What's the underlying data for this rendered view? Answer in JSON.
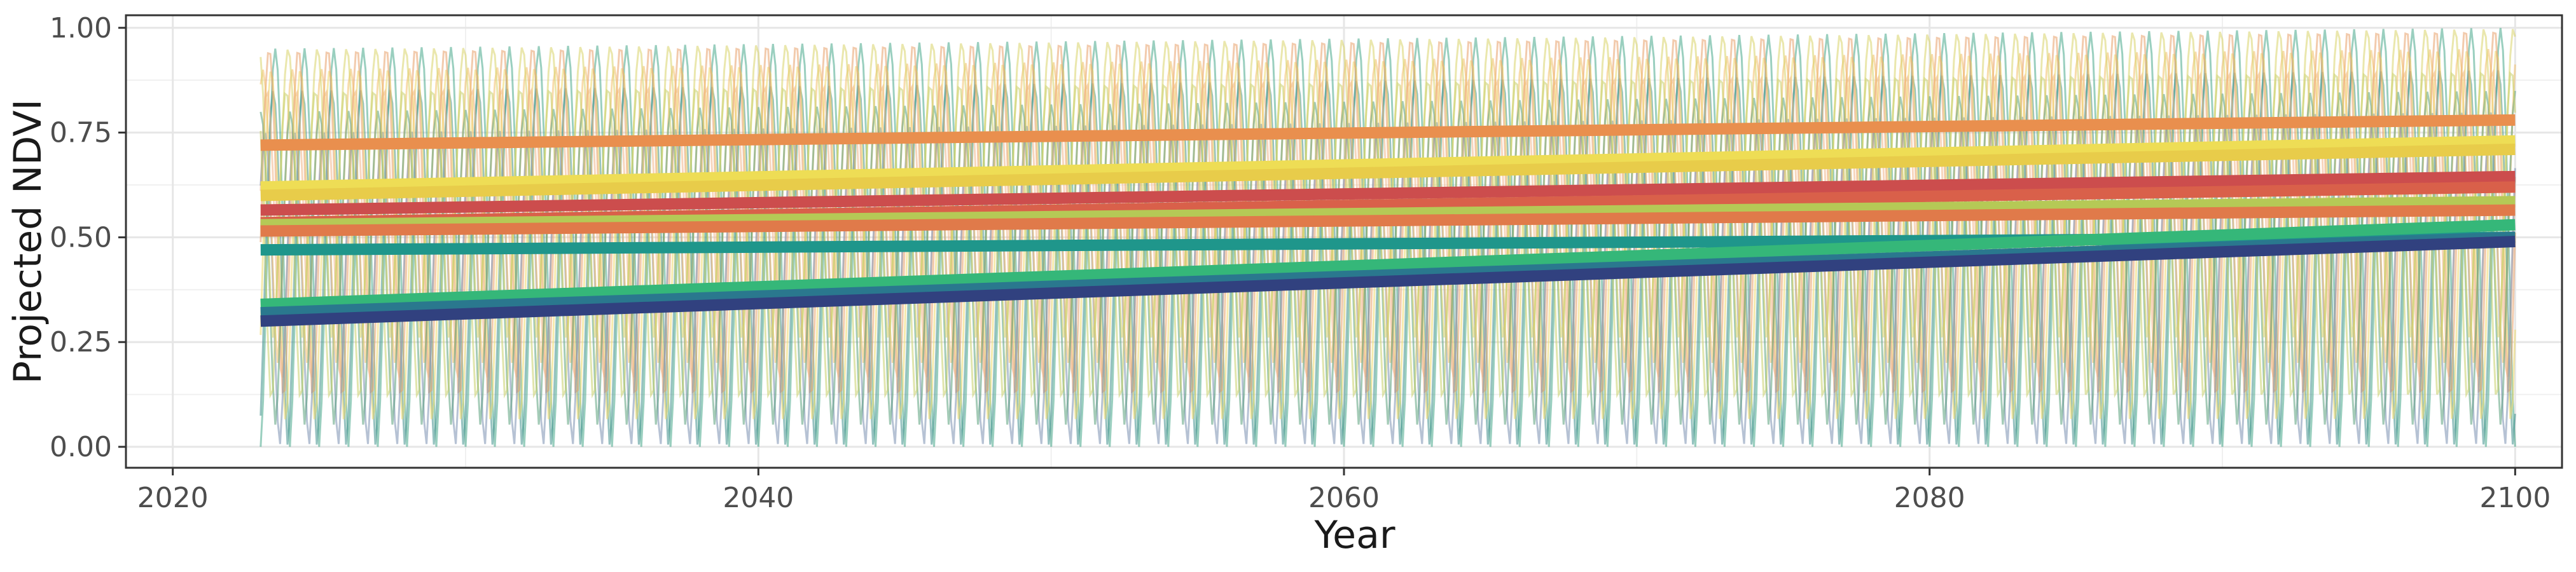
{
  "chart_data": {
    "type": "line",
    "xlabel": "Year",
    "ylabel": "Projected NDVI",
    "xlim": [
      2018.4,
      2101.6
    ],
    "ylim": [
      -0.05,
      1.03
    ],
    "x_ticks": [
      2020,
      2040,
      2060,
      2080,
      2100
    ],
    "x_tick_labels": [
      "2020",
      "2040",
      "2060",
      "2080",
      "2100"
    ],
    "y_ticks": [
      0,
      0.25,
      0.5,
      0.75,
      1
    ],
    "y_tick_labels": [
      "0.00",
      "0.25",
      "0.50",
      "0.75",
      "1.00"
    ],
    "grid": true,
    "legend": "none",
    "seasonal_series": {
      "description_note": "annual NDVI oscillation, one cycle per year",
      "x_range": [
        2023,
        2100
      ],
      "cycles_per_year": 1,
      "colors": [
        "#3f8f8c",
        "#47a88a",
        "#5aa07c",
        "#7a8fb0",
        "#f2c06a",
        "#e8a06a",
        "#eed86a",
        "#d9d36a",
        "#f0b488",
        "#c8d06a"
      ],
      "series": [
        {
          "min": 0.0,
          "max": 0.95,
          "color": "#47a88a"
        },
        {
          "min": 0.0,
          "max": 0.85,
          "color": "#3f8f8c"
        },
        {
          "min": 0.05,
          "max": 0.9,
          "color": "#eed86a"
        },
        {
          "min": 0.1,
          "max": 0.95,
          "color": "#e8a06a"
        },
        {
          "min": 0.15,
          "max": 0.85,
          "color": "#f0b488"
        },
        {
          "min": 0.0,
          "max": 0.75,
          "color": "#7a8fb0"
        },
        {
          "min": 0.2,
          "max": 0.9,
          "color": "#f2c06a"
        },
        {
          "min": 0.05,
          "max": 0.8,
          "color": "#5aa07c"
        },
        {
          "min": 0.25,
          "max": 0.95,
          "color": "#d9d36a"
        },
        {
          "min": 0.1,
          "max": 0.85,
          "color": "#c8d06a"
        }
      ]
    },
    "trend_series": [
      {
        "x": [
          2023,
          2100
        ],
        "y": [
          0.72,
          0.78
        ],
        "color": "#e98f4e"
      },
      {
        "x": [
          2023,
          2100
        ],
        "y": [
          0.62,
          0.73
        ],
        "color": "#eedd55"
      },
      {
        "x": [
          2023,
          2100
        ],
        "y": [
          0.6,
          0.71
        ],
        "color": "#e8cc4a"
      },
      {
        "x": [
          2023,
          2100
        ],
        "y": [
          0.565,
          0.645
        ],
        "color": "#cc4d4d"
      },
      {
        "x": [
          2023,
          2100
        ],
        "y": [
          0.535,
          0.62
        ],
        "color": "#d9604a"
      },
      {
        "x": [
          2023,
          2100
        ],
        "y": [
          0.53,
          0.585
        ],
        "color": "#b5c956"
      },
      {
        "x": [
          2023,
          2100
        ],
        "y": [
          0.515,
          0.565
        ],
        "color": "#e07a4a"
      },
      {
        "x": [
          2023,
          2100
        ],
        "y": [
          0.47,
          0.5
        ],
        "color": "#1f968b"
      },
      {
        "x": [
          2023,
          2100
        ],
        "y": [
          0.34,
          0.53
        ],
        "color": "#35b779"
      },
      {
        "x": [
          2023,
          2100
        ],
        "y": [
          0.32,
          0.5
        ],
        "color": "#2a788e"
      },
      {
        "x": [
          2023,
          2100
        ],
        "y": [
          0.3,
          0.49
        ],
        "color": "#31417f"
      }
    ]
  }
}
